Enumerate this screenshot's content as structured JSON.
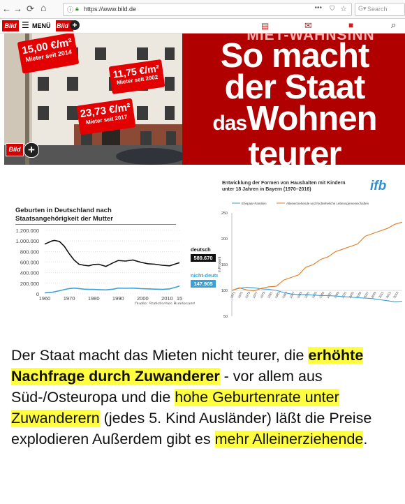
{
  "browser": {
    "back_icon": "←",
    "forward_icon": "→",
    "reload_icon": "⟳",
    "home_icon": "⌂",
    "url": "https://www.bild.de",
    "more_icon": "•••",
    "search_placeholder": "Search"
  },
  "bild_nav": {
    "logo": "Bild",
    "menu_label": "MENÜ",
    "plus_logo": "Bild"
  },
  "hero": {
    "kicker": "MIET-WAHNSINN",
    "headline_1": "So macht",
    "headline_2": "der Staat",
    "headline_3a": "das",
    "headline_3b": "Wohnen",
    "headline_4": "teurer",
    "price1_value": "15,00 €/m²",
    "price1_sub": "Mieter seit 2014",
    "price2_value": "11,75 €/m²",
    "price2_sub": "Mieter seit 2002",
    "price3_value": "23,73 €/m²",
    "price3_sub": "Mieter seit 2017",
    "logo": "Bild"
  },
  "chart_data": [
    {
      "type": "line",
      "title": "Geburten in Deutschland nach Staatsangehörigkeit der Mutter",
      "title_line1": "Geburten in Deutschland nach",
      "title_line2": "Staatsangehörigkeit der Mutter",
      "source": "Quelle: Statistisches Bundesamt",
      "x_ticks": [
        "1960",
        "1970",
        "1980",
        "1990",
        "2000",
        "2010",
        "15"
      ],
      "y_ticks": [
        "0",
        "200.000",
        "400.000",
        "600.000",
        "800.000",
        "1.000.000",
        "1.200.000"
      ],
      "ylim": [
        0,
        1200000
      ],
      "x": [
        1960,
        1963,
        1964,
        1966,
        1968,
        1970,
        1972,
        1974,
        1976,
        1978,
        1980,
        1982,
        1985,
        1988,
        1990,
        1993,
        1996,
        1999,
        2002,
        2005,
        2008,
        2011,
        2013,
        2015
      ],
      "series": [
        {
          "name": "deutsch",
          "end_label": "589.670",
          "color": "#111111",
          "values": [
            940000,
            1000000,
            1010000,
            990000,
            900000,
            760000,
            640000,
            560000,
            540000,
            530000,
            555000,
            560000,
            520000,
            590000,
            630000,
            620000,
            640000,
            600000,
            570000,
            560000,
            540000,
            530000,
            560000,
            589670
          ]
        },
        {
          "name": "nicht-deutsch",
          "end_label": "147.905",
          "color": "#3aa0d8",
          "values": [
            20000,
            30000,
            40000,
            60000,
            80000,
            100000,
            110000,
            100000,
            90000,
            85000,
            85000,
            80000,
            75000,
            90000,
            110000,
            105000,
            110000,
            100000,
            95000,
            90000,
            85000,
            95000,
            120000,
            147905
          ]
        }
      ]
    },
    {
      "type": "line",
      "title": "Entwicklung der Formen von Haushalten mit Kindern unter 18 Jahren in Bayern (1970–2016)",
      "title_line1": "Entwicklung der Formen von Haushalten mit Kindern",
      "title_line2": "unter 18 Jahren in Bayern (1970–2016)",
      "logo": "ifb",
      "ylabel": "in Prozent",
      "y_ticks": [
        "50",
        "100",
        "150",
        "200",
        "250"
      ],
      "ylim": [
        50,
        250
      ],
      "x_ticks": [
        "1971",
        "1973",
        "1975",
        "1977",
        "1979",
        "1981",
        "1983",
        "1985",
        "1987",
        "1989",
        "1991",
        "1993",
        "1995",
        "1997",
        "1999",
        "2001",
        "2003",
        "2005",
        "2007",
        "2009",
        "2011",
        "2013",
        "2015"
      ],
      "xlim": [
        1970,
        2016
      ],
      "series": [
        {
          "name": "Ehepaar-Familien",
          "color": "#3aa0d8",
          "x": [
            1970,
            1972,
            1974,
            1976,
            1978,
            1980,
            1982,
            1984,
            1986,
            1988,
            1990,
            1992,
            1994,
            1996,
            1998,
            2000,
            2002,
            2004,
            2006,
            2008,
            2010,
            2012,
            2014,
            2016
          ],
          "values": [
            100,
            104,
            106,
            105,
            103,
            102,
            100,
            96,
            93,
            92,
            92,
            91,
            90,
            90,
            89,
            88,
            87,
            86,
            85,
            84,
            82,
            80,
            78,
            79
          ]
        },
        {
          "name": "Alleinerziehende und Nichteheliche Lebensgemeinschaften",
          "color": "#e07b20",
          "x": [
            1970,
            1972,
            1974,
            1976,
            1978,
            1980,
            1982,
            1984,
            1986,
            1988,
            1990,
            1992,
            1994,
            1996,
            1998,
            2000,
            2002,
            2004,
            2006,
            2008,
            2010,
            2012,
            2014,
            2016
          ],
          "values": [
            100,
            105,
            101,
            99,
            104,
            107,
            108,
            120,
            125,
            130,
            145,
            150,
            160,
            165,
            175,
            180,
            185,
            190,
            205,
            210,
            215,
            220,
            228,
            232
          ]
        }
      ]
    }
  ],
  "text": {
    "seg1": "Der Staat macht das Mieten nicht teurer, die ",
    "seg2": "erhöhte Nachfrage durch Zuwanderer",
    "seg3": " - vor allem aus Süd-/Osteuropa und die ",
    "seg4": "hohe Geburtenrate unter Zuwanderern",
    "seg5": " (jedes 5. Kind Ausländer) läßt die Preise explodieren Außerdem gibt es ",
    "seg6": "mehr Alleinerziehende",
    "seg7": "."
  },
  "colors": {
    "bild_red": "#d50000",
    "highlight": "#ffff40",
    "nav_icon_red": "#cc2020"
  }
}
